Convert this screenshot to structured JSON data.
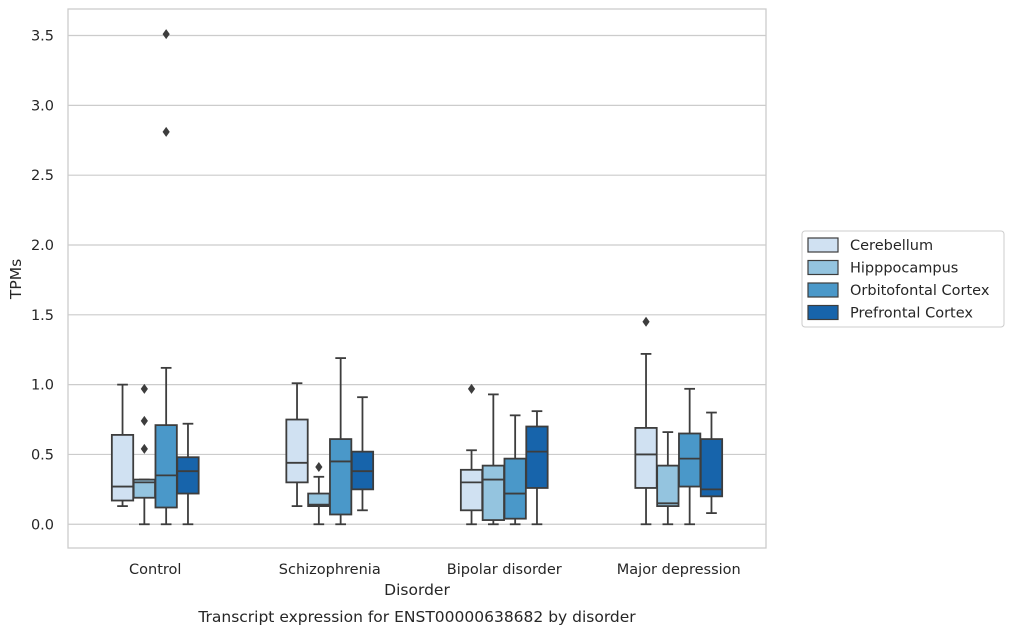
{
  "chart_data": {
    "type": "box",
    "title": "Transcript expression for ENST00000638682 by disorder",
    "xlabel": "Disorder",
    "ylabel": "TPMs",
    "ylim": [
      -0.17,
      3.69
    ],
    "yticks": [
      0.0,
      0.5,
      1.0,
      1.5,
      2.0,
      2.5,
      3.0,
      3.5
    ],
    "ytick_labels": [
      "0.0",
      "0.5",
      "1.0",
      "1.5",
      "2.0",
      "2.5",
      "3.0",
      "3.5"
    ],
    "grid": "horizontal",
    "legend_position": "right",
    "categories": [
      "Control",
      "Schizophrenia",
      "Bipolar disorder",
      "Major depression"
    ],
    "series": [
      {
        "name": "Cerebellum",
        "color": "#d0e1f2",
        "boxes": [
          {
            "whislo": 0.13,
            "q1": 0.17,
            "med": 0.27,
            "q3": 0.64,
            "whishi": 1.0,
            "fliers": []
          },
          {
            "whislo": 0.13,
            "q1": 0.3,
            "med": 0.44,
            "q3": 0.75,
            "whishi": 1.01,
            "fliers": []
          },
          {
            "whislo": 0.0,
            "q1": 0.1,
            "med": 0.3,
            "q3": 0.39,
            "whishi": 0.53,
            "fliers": [
              0.97
            ]
          },
          {
            "whislo": 0.0,
            "q1": 0.26,
            "med": 0.5,
            "q3": 0.69,
            "whishi": 1.22,
            "fliers": [
              1.45
            ]
          }
        ]
      },
      {
        "name": "Hipppocampus",
        "color": "#94c4df",
        "boxes": [
          {
            "whislo": 0.0,
            "q1": 0.19,
            "med": 0.3,
            "q3": 0.32,
            "whishi": 0.32,
            "fliers": [
              0.54,
              0.74,
              0.97
            ]
          },
          {
            "whislo": 0.0,
            "q1": 0.13,
            "med": 0.14,
            "q3": 0.22,
            "whishi": 0.34,
            "fliers": [
              0.41
            ]
          },
          {
            "whislo": 0.0,
            "q1": 0.03,
            "med": 0.32,
            "q3": 0.42,
            "whishi": 0.93,
            "fliers": []
          },
          {
            "whislo": 0.0,
            "q1": 0.13,
            "med": 0.15,
            "q3": 0.42,
            "whishi": 0.66,
            "fliers": []
          }
        ]
      },
      {
        "name": "Orbitofontal Cortex",
        "color": "#4a98c9",
        "boxes": [
          {
            "whislo": 0.0,
            "q1": 0.12,
            "med": 0.35,
            "q3": 0.71,
            "whishi": 1.12,
            "fliers": [
              2.81,
              3.51
            ]
          },
          {
            "whislo": 0.0,
            "q1": 0.07,
            "med": 0.45,
            "q3": 0.61,
            "whishi": 1.19,
            "fliers": []
          },
          {
            "whislo": 0.0,
            "q1": 0.04,
            "med": 0.22,
            "q3": 0.47,
            "whishi": 0.78,
            "fliers": []
          },
          {
            "whislo": 0.0,
            "q1": 0.27,
            "med": 0.47,
            "q3": 0.65,
            "whishi": 0.97,
            "fliers": []
          }
        ]
      },
      {
        "name": "Prefrontal Cortex",
        "color": "#1764ab",
        "boxes": [
          {
            "whislo": 0.0,
            "q1": 0.22,
            "med": 0.38,
            "q3": 0.48,
            "whishi": 0.72,
            "fliers": []
          },
          {
            "whislo": 0.1,
            "q1": 0.25,
            "med": 0.38,
            "q3": 0.52,
            "whishi": 0.91,
            "fliers": []
          },
          {
            "whislo": 0.0,
            "q1": 0.26,
            "med": 0.52,
            "q3": 0.7,
            "whishi": 0.81,
            "fliers": []
          },
          {
            "whislo": 0.08,
            "q1": 0.2,
            "med": 0.25,
            "q3": 0.61,
            "whishi": 0.8,
            "fliers": []
          }
        ]
      }
    ]
  },
  "colors": {
    "grid": "#cccccc",
    "frame": "#cccccc",
    "box_edge": "#3d3d3d",
    "text": "#262626"
  }
}
